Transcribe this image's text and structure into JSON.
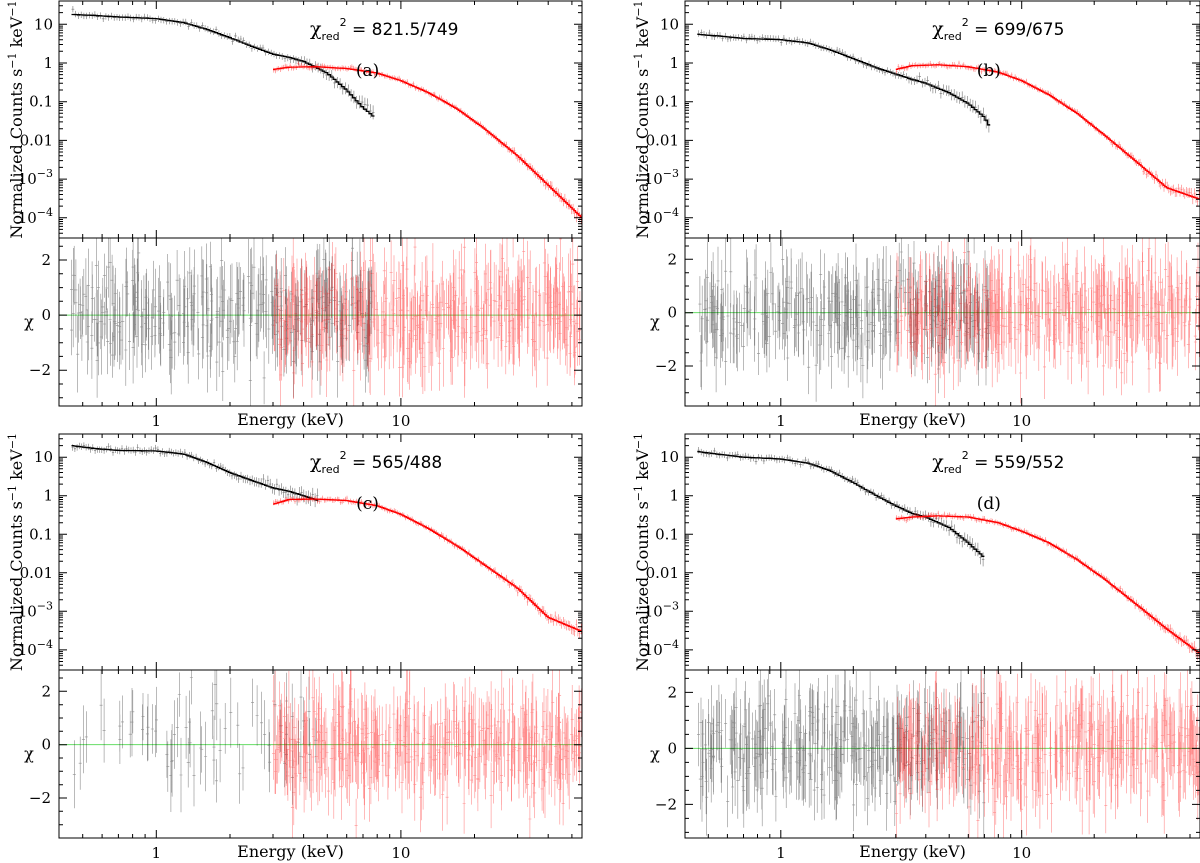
{
  "figure_title": "Four-panel X-ray spectral fits (black: soft-band spectrum, red: hard-band spectrum)",
  "colors": {
    "soft_data": "#000000",
    "hard_data": "#ff0000",
    "zero_line": "#66dd66",
    "frame": "#000000"
  },
  "chart_data": [
    {
      "type": "scatter",
      "panel": "(a)",
      "chi_label": "χ",
      "chi_sub": "red",
      "chi_sup": "2",
      "chi_value": " = 821.5/749",
      "xlabel": "Energy (keV)",
      "ylabel_top": "Normalized Counts s",
      "ylabel_top_exp1": "−1",
      "ylabel_top_mid": " keV",
      "ylabel_top_exp2": "−1",
      "ylabel_bottom": "χ",
      "xlim": [
        0.4,
        55
      ],
      "ylim_spec": [
        3e-05,
        40
      ],
      "ylim_resid": [
        -3.3,
        2.8
      ],
      "x_ticks": [
        1,
        10
      ],
      "x_tick_labels": [
        "1",
        "10"
      ],
      "spec_ticks": [
        10,
        1,
        0.1,
        0.01,
        0.001,
        0.0001
      ],
      "spec_tick_labels": [
        {
          "base": "10",
          "exp": ""
        },
        {
          "base": "1",
          "exp": ""
        },
        {
          "base": "0.1",
          "exp": ""
        },
        {
          "base": "0.01",
          "exp": ""
        },
        {
          "base": "10",
          "exp": "−3"
        },
        {
          "base": "10",
          "exp": "−4"
        }
      ],
      "resid_ticks": [
        2,
        0,
        -2
      ],
      "resid_tick_labels": [
        "2",
        "0",
        "−2"
      ],
      "series": [
        {
          "name": "soft",
          "color": "#000000",
          "energy": [
            0.45,
            0.55,
            0.7,
            1.0,
            1.3,
            1.6,
            2.0,
            2.5,
            3.0,
            3.5,
            4.0,
            5.0,
            6.0,
            7.0,
            7.8
          ],
          "flux": [
            18,
            17,
            15.5,
            14,
            11,
            7.5,
            4.5,
            2.6,
            1.7,
            1.4,
            1.1,
            0.55,
            0.2,
            0.07,
            0.04
          ]
        },
        {
          "name": "hard",
          "color": "#ff0000",
          "energy": [
            3.0,
            3.5,
            4.5,
            6.0,
            8.0,
            10,
            13,
            17,
            22,
            30,
            40,
            55
          ],
          "flux": [
            0.68,
            0.78,
            0.8,
            0.72,
            0.55,
            0.35,
            0.17,
            0.065,
            0.02,
            0.004,
            0.0007,
            0.0001
          ]
        }
      ]
    },
    {
      "type": "scatter",
      "panel": "(b)",
      "chi_label": "χ",
      "chi_sub": "red",
      "chi_sup": "2",
      "chi_value": " = 699/675",
      "xlabel": "Energy (keV)",
      "ylabel_top": "Normalized Counts s",
      "ylabel_top_exp1": "−1",
      "ylabel_top_mid": " keV",
      "ylabel_top_exp2": "−1",
      "ylabel_bottom": "χ",
      "xlim": [
        0.4,
        55
      ],
      "ylim_spec": [
        3e-05,
        40
      ],
      "ylim_resid": [
        -3.5,
        2.8
      ],
      "x_ticks": [
        1,
        10
      ],
      "x_tick_labels": [
        "1",
        "10"
      ],
      "spec_ticks": [
        10,
        1,
        0.1,
        0.01,
        0.001,
        0.0001
      ],
      "spec_tick_labels": [
        {
          "base": "10",
          "exp": ""
        },
        {
          "base": "1",
          "exp": ""
        },
        {
          "base": "0.1",
          "exp": ""
        },
        {
          "base": "0.01",
          "exp": ""
        },
        {
          "base": "10",
          "exp": "−3"
        },
        {
          "base": "10",
          "exp": "−4"
        }
      ],
      "resid_ticks": [
        2,
        0,
        -2
      ],
      "resid_tick_labels": [
        "2",
        "0",
        "−2"
      ],
      "series": [
        {
          "name": "soft",
          "color": "#000000",
          "energy": [
            0.45,
            0.55,
            0.7,
            1.0,
            1.3,
            1.6,
            2.0,
            2.5,
            3.0,
            3.5,
            4.0,
            5.0,
            6.0,
            7.0,
            7.4
          ],
          "flux": [
            5.5,
            5.0,
            4.3,
            4.0,
            3.3,
            2.2,
            1.3,
            0.75,
            0.52,
            0.38,
            0.3,
            0.17,
            0.09,
            0.04,
            0.022
          ]
        },
        {
          "name": "hard",
          "color": "#ff0000",
          "energy": [
            3.0,
            3.5,
            4.5,
            6.0,
            8.0,
            10,
            13,
            17,
            22,
            30,
            40,
            55
          ],
          "flux": [
            0.68,
            0.85,
            0.9,
            0.8,
            0.58,
            0.35,
            0.15,
            0.05,
            0.014,
            0.0028,
            0.0006,
            0.0003
          ]
        }
      ]
    },
    {
      "type": "scatter",
      "panel": "(c)",
      "chi_label": "χ",
      "chi_sub": "red",
      "chi_sup": "2",
      "chi_value": " = 565/488",
      "xlabel": "Energy (keV)",
      "ylabel_top": "Normalized Counts s",
      "ylabel_top_exp1": "−1",
      "ylabel_top_mid": " keV",
      "ylabel_top_exp2": "−1",
      "ylabel_bottom": "χ",
      "xlim": [
        0.4,
        55
      ],
      "ylim_spec": [
        3e-05,
        40
      ],
      "ylim_resid": [
        -3.5,
        2.8
      ],
      "x_ticks": [
        1,
        10
      ],
      "x_tick_labels": [
        "1",
        "10"
      ],
      "spec_ticks": [
        10,
        1,
        0.1,
        0.01,
        0.001,
        0.0001
      ],
      "spec_tick_labels": [
        {
          "base": "10",
          "exp": ""
        },
        {
          "base": "1",
          "exp": ""
        },
        {
          "base": "0.1",
          "exp": ""
        },
        {
          "base": "0.01",
          "exp": ""
        },
        {
          "base": "10",
          "exp": "−3"
        },
        {
          "base": "10",
          "exp": "−4"
        }
      ],
      "resid_ticks": [
        2,
        0,
        -2
      ],
      "resid_tick_labels": [
        "2",
        "0",
        "−2"
      ],
      "series": [
        {
          "name": "soft",
          "color": "#000000",
          "energy": [
            0.45,
            0.55,
            0.7,
            1.0,
            1.3,
            1.6,
            2.0,
            2.5,
            3.0,
            3.5,
            4.0,
            4.6
          ],
          "flux": [
            20,
            17,
            15,
            14.5,
            12,
            7.5,
            4,
            2.4,
            1.6,
            1.3,
            1.0,
            0.75
          ]
        },
        {
          "name": "hard",
          "color": "#ff0000",
          "energy": [
            3.0,
            3.5,
            4.5,
            6.0,
            8.0,
            10,
            13,
            17,
            22,
            30,
            40,
            55
          ],
          "flux": [
            0.6,
            0.8,
            0.82,
            0.75,
            0.55,
            0.33,
            0.14,
            0.05,
            0.016,
            0.004,
            0.0007,
            0.0003
          ]
        }
      ]
    },
    {
      "type": "scatter",
      "panel": "(d)",
      "chi_label": "χ",
      "chi_sub": "red",
      "chi_sup": "2",
      "chi_value": " = 559/552",
      "xlabel": "Energy (keV)",
      "ylabel_top": "Normalized Counts s",
      "ylabel_top_exp1": "−1",
      "ylabel_top_mid": " keV",
      "ylabel_top_exp2": "−1",
      "ylabel_bottom": "χ",
      "xlim": [
        0.4,
        55
      ],
      "ylim_spec": [
        3e-05,
        40
      ],
      "ylim_resid": [
        -3.2,
        2.8
      ],
      "x_ticks": [
        1,
        10
      ],
      "x_tick_labels": [
        "1",
        "10"
      ],
      "spec_ticks": [
        10,
        1,
        0.1,
        0.01,
        0.001,
        0.0001
      ],
      "spec_tick_labels": [
        {
          "base": "10",
          "exp": ""
        },
        {
          "base": "1",
          "exp": ""
        },
        {
          "base": "0.1",
          "exp": ""
        },
        {
          "base": "0.01",
          "exp": ""
        },
        {
          "base": "10",
          "exp": "−3"
        },
        {
          "base": "10",
          "exp": "−4"
        }
      ],
      "resid_ticks": [
        2,
        0,
        -2
      ],
      "resid_tick_labels": [
        "2",
        "0",
        "−2"
      ],
      "series": [
        {
          "name": "soft",
          "color": "#000000",
          "energy": [
            0.45,
            0.55,
            0.7,
            1.0,
            1.3,
            1.6,
            2.0,
            2.5,
            3.0,
            3.5,
            4.0,
            5.0,
            6.0,
            7.0
          ],
          "flux": [
            14,
            12,
            10,
            9,
            7,
            4.5,
            2.2,
            1.0,
            0.55,
            0.35,
            0.28,
            0.15,
            0.06,
            0.025
          ]
        },
        {
          "name": "hard",
          "color": "#ff0000",
          "energy": [
            3.0,
            3.5,
            4.5,
            6.0,
            8.0,
            10,
            13,
            17,
            22,
            30,
            40,
            55
          ],
          "flux": [
            0.25,
            0.28,
            0.3,
            0.28,
            0.2,
            0.12,
            0.06,
            0.022,
            0.007,
            0.0015,
            0.00035,
            8e-05
          ]
        }
      ]
    }
  ]
}
